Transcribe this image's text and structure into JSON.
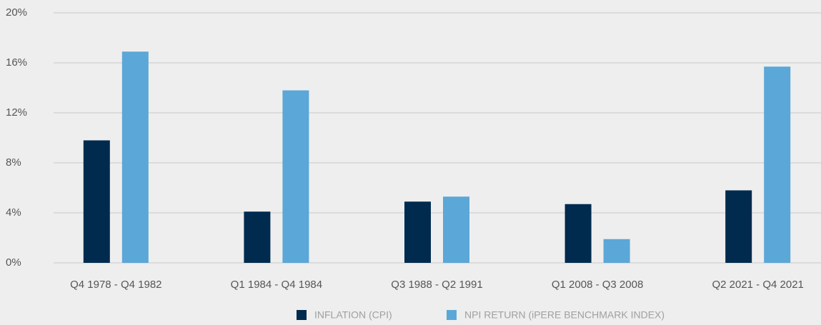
{
  "chart_data": {
    "type": "bar",
    "categories": [
      "Q4 1978 - Q4 1982",
      "Q1 1984 - Q4 1984",
      "Q3 1988 - Q2 1991",
      "Q1 2008 - Q3 2008",
      "Q2 2021 - Q4 2021"
    ],
    "series": [
      {
        "name": "INFLATION (CPI)",
        "color": "#002a4e",
        "values": [
          9.8,
          4.1,
          4.9,
          4.7,
          5.8
        ]
      },
      {
        "name": "NPI RETURN (iPERE BENCHMARK INDEX)",
        "color": "#5ba7d8",
        "values": [
          16.9,
          13.8,
          5.3,
          1.9,
          15.7
        ]
      }
    ],
    "ylim": [
      0,
      20
    ],
    "yticks": [
      {
        "value": 0,
        "label": "0%"
      },
      {
        "value": 4,
        "label": "4%"
      },
      {
        "value": 8,
        "label": "8%"
      },
      {
        "value": 12,
        "label": "12%"
      },
      {
        "value": 16,
        "label": "16%"
      },
      {
        "value": 20,
        "label": "20%"
      }
    ],
    "grid": true,
    "legend": "bottom"
  }
}
